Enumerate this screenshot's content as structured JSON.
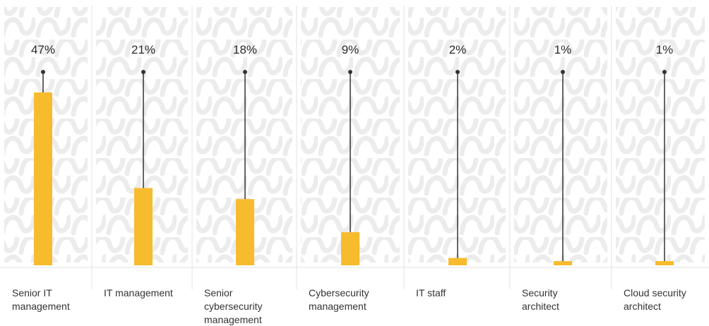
{
  "chart_data": {
    "type": "bar",
    "categories": [
      [
        "Senior IT",
        "management"
      ],
      [
        "IT management"
      ],
      [
        "Senior",
        "cybersecurity",
        "management"
      ],
      [
        "Cybersecurity",
        "management"
      ],
      [
        "IT staff"
      ],
      [
        "Security",
        "architect"
      ],
      [
        "Cloud security",
        "architect"
      ]
    ],
    "values": [
      47,
      21,
      18,
      9,
      2,
      1,
      1
    ],
    "value_labels": [
      "47%",
      "21%",
      "18%",
      "9%",
      "2%",
      "1%",
      "1%"
    ],
    "ylim": [
      0,
      47
    ],
    "bar_color": "#f7bb2e",
    "stem_color": "#333333",
    "grid": false,
    "background_pattern": "wave-pattern"
  }
}
